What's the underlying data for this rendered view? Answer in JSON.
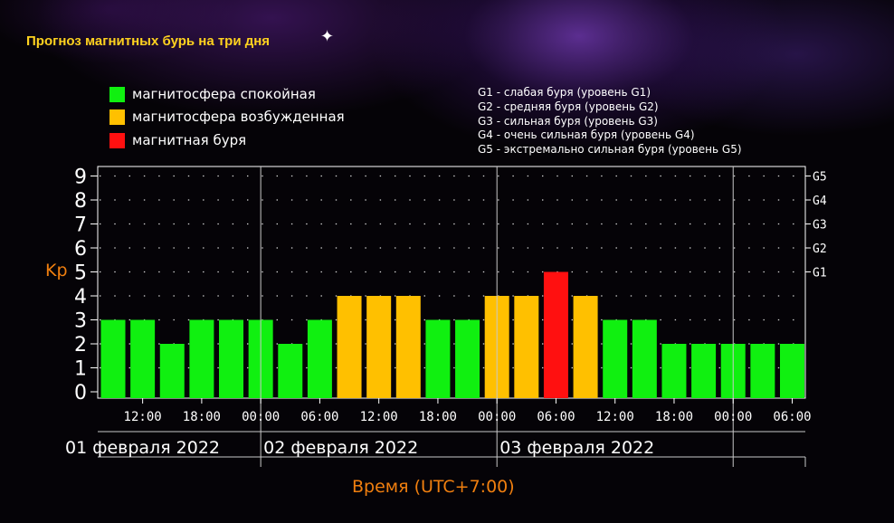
{
  "page": {
    "title": "Прогноз магнитных бурь на три дня"
  },
  "legend": [
    {
      "label": "магнитосфера спокойная",
      "color": "#10f010"
    },
    {
      "label": "магнитосфера возбужденная",
      "color": "#ffc000"
    },
    {
      "label": "магнитная буря",
      "color": "#ff1010"
    }
  ],
  "g_levels_legend": [
    "G1 - слабая буря (уровень G1)",
    "G2 - средняя буря (уровень G2)",
    "G3 - сильная буря (уровень G3)",
    "G4 - очень сильная буря (уровень G4)",
    "G5 - экстремально сильная буря (уровень G5)"
  ],
  "chart_data": {
    "type": "bar",
    "ylabel": "Kp",
    "xlabel": "Время (UTC+7:00)",
    "ylim": [
      0,
      9
    ],
    "y_ticks": [
      "0",
      "1",
      "2",
      "3",
      "4",
      "5",
      "6",
      "7",
      "8",
      "9"
    ],
    "right_ticks": [
      {
        "kp": 5,
        "label": "G1"
      },
      {
        "kp": 6,
        "label": "G2"
      },
      {
        "kp": 7,
        "label": "G3"
      },
      {
        "kp": 8,
        "label": "G4"
      },
      {
        "kp": 9,
        "label": "G5"
      }
    ],
    "values": [
      3,
      3,
      2,
      3,
      3,
      3,
      2,
      3,
      4,
      4,
      4,
      3,
      3,
      4,
      4,
      5,
      4,
      3,
      3,
      2,
      2,
      2,
      2,
      2
    ],
    "x_tick_labels": [
      "12:00",
      "18:00",
      "00:00",
      "06:00",
      "12:00",
      "18:00",
      "00:00",
      "06:00",
      "12:00",
      "18:00",
      "00:00",
      "06:00"
    ],
    "x_tick_bar_index": [
      1,
      3,
      5,
      7,
      9,
      11,
      13,
      15,
      17,
      19,
      21,
      23
    ],
    "day_separators_bar_index": [
      5,
      13,
      21
    ],
    "days": [
      {
        "label": "01 февраля 2022",
        "start_bar": 0,
        "end_bar": 5
      },
      {
        "label": "02 февраля 2022",
        "start_bar": 5,
        "end_bar": 13
      },
      {
        "label": "03 февраля 2022",
        "start_bar": 13,
        "end_bar": 21
      }
    ],
    "level_colors": {
      "calm": "#10f010",
      "active": "#ffc000",
      "storm": "#ff1010"
    },
    "grid": "dotted"
  }
}
